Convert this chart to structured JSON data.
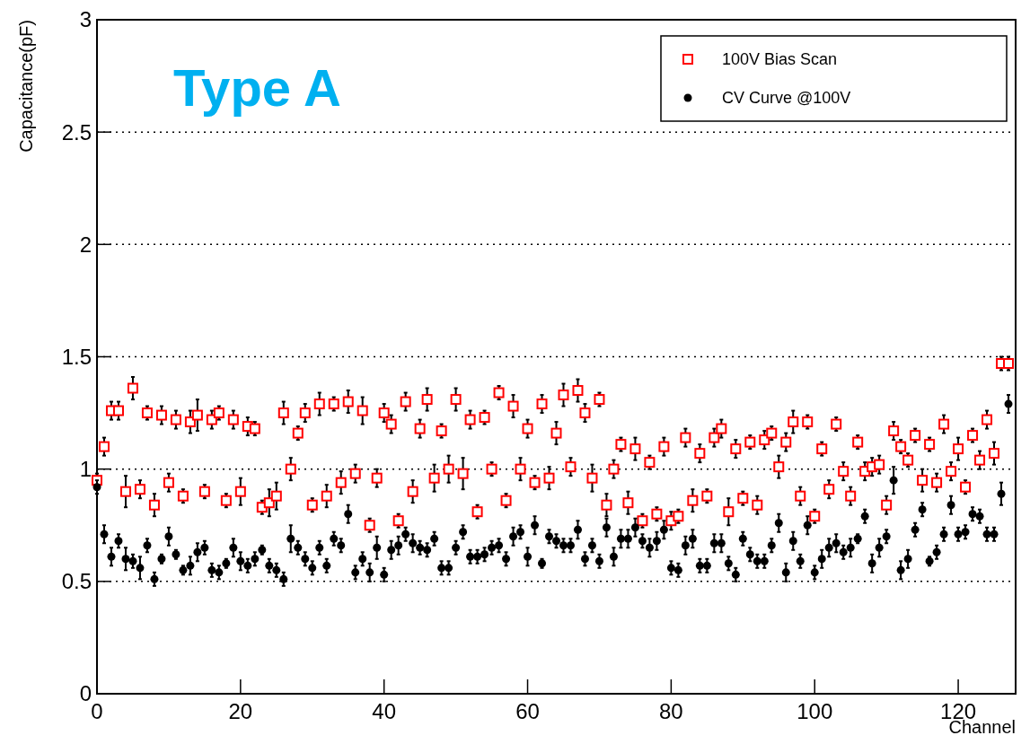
{
  "chart_data": {
    "type": "scatter",
    "xlabel": "Channel",
    "ylabel": "Capacitance(pF)",
    "annotations": [
      "Type A"
    ],
    "xlim": [
      0,
      128
    ],
    "xticks": [
      0,
      20,
      40,
      60,
      80,
      100,
      120
    ],
    "ylim": [
      0,
      3
    ],
    "yticks": [
      0,
      0.5,
      1,
      1.5,
      2,
      2.5,
      3
    ],
    "grid": "y",
    "legend": "top right",
    "x": [
      0,
      1,
      2,
      3,
      4,
      5,
      6,
      7,
      8,
      9,
      10,
      11,
      12,
      13,
      14,
      15,
      16,
      17,
      18,
      19,
      20,
      21,
      22,
      23,
      24,
      25,
      26,
      27,
      28,
      29,
      30,
      31,
      32,
      33,
      34,
      35,
      36,
      37,
      38,
      39,
      40,
      41,
      42,
      43,
      44,
      45,
      46,
      47,
      48,
      49,
      50,
      51,
      52,
      53,
      54,
      55,
      56,
      57,
      58,
      59,
      60,
      61,
      62,
      63,
      64,
      65,
      66,
      67,
      68,
      69,
      70,
      71,
      72,
      73,
      74,
      75,
      76,
      77,
      78,
      79,
      80,
      81,
      82,
      83,
      84,
      85,
      86,
      87,
      88,
      89,
      90,
      91,
      92,
      93,
      94,
      95,
      96,
      97,
      98,
      99,
      100,
      101,
      102,
      103,
      104,
      105,
      106,
      107,
      108,
      109,
      110,
      111,
      112,
      113,
      114,
      115,
      116,
      117,
      118,
      119,
      120,
      121,
      122,
      123,
      124,
      125,
      126,
      127
    ],
    "series": [
      {
        "name": "100V Bias Scan",
        "color": "#ff0000",
        "marker": "square",
        "values": [
          0.95,
          1.1,
          1.26,
          1.26,
          0.9,
          1.36,
          0.91,
          1.25,
          0.84,
          1.24,
          0.94,
          1.22,
          0.88,
          1.21,
          1.24,
          0.9,
          1.22,
          1.25,
          0.86,
          1.22,
          0.9,
          1.19,
          1.18,
          0.83,
          0.85,
          0.88,
          1.25,
          1.0,
          1.16,
          1.25,
          0.84,
          1.29,
          0.88,
          1.29,
          0.94,
          1.3,
          0.98,
          1.26,
          0.75,
          0.96,
          1.25,
          1.2,
          0.77,
          1.3,
          0.9,
          1.18,
          1.31,
          0.96,
          1.17,
          1.0,
          1.31,
          0.98,
          1.22,
          0.81,
          1.23,
          1.0,
          1.34,
          0.86,
          1.28,
          1.0,
          1.18,
          0.94,
          1.29,
          0.96,
          1.16,
          1.33,
          1.01,
          1.35,
          1.25,
          0.96,
          1.31,
          0.84,
          1.0,
          1.11,
          0.85,
          1.09,
          0.77,
          1.03,
          0.8,
          1.1,
          0.77,
          0.79,
          1.14,
          0.86,
          1.07,
          0.88,
          1.14,
          1.18,
          0.81,
          1.09,
          0.87,
          1.12,
          0.84,
          1.13,
          1.16,
          1.01,
          1.12,
          1.21,
          0.88,
          1.21,
          0.79,
          1.09,
          0.91,
          1.2,
          0.99,
          0.88,
          1.12,
          0.99,
          1.01,
          1.02,
          0.84,
          1.17,
          1.1,
          1.04,
          1.15,
          0.95,
          1.11,
          0.94,
          1.2,
          0.99,
          1.09,
          0.92,
          1.15,
          1.04,
          1.22,
          1.07,
          1.47,
          1.47
        ],
        "errors": [
          0.03,
          0.04,
          0.04,
          0.04,
          0.07,
          0.05,
          0.04,
          0.03,
          0.05,
          0.04,
          0.04,
          0.04,
          0.03,
          0.05,
          0.07,
          0.03,
          0.04,
          0.03,
          0.03,
          0.04,
          0.06,
          0.04,
          0.03,
          0.03,
          0.06,
          0.06,
          0.05,
          0.05,
          0.03,
          0.04,
          0.03,
          0.05,
          0.05,
          0.03,
          0.05,
          0.05,
          0.04,
          0.06,
          0.03,
          0.04,
          0.04,
          0.04,
          0.03,
          0.04,
          0.05,
          0.04,
          0.05,
          0.06,
          0.03,
          0.06,
          0.05,
          0.07,
          0.04,
          0.03,
          0.03,
          0.03,
          0.03,
          0.03,
          0.05,
          0.05,
          0.04,
          0.03,
          0.04,
          0.05,
          0.05,
          0.05,
          0.04,
          0.05,
          0.04,
          0.06,
          0.03,
          0.05,
          0.04,
          0.03,
          0.05,
          0.05,
          0.03,
          0.03,
          0.03,
          0.04,
          0.04,
          0.03,
          0.04,
          0.05,
          0.04,
          0.03,
          0.04,
          0.04,
          0.06,
          0.04,
          0.03,
          0.03,
          0.04,
          0.04,
          0.03,
          0.05,
          0.04,
          0.05,
          0.04,
          0.03,
          0.03,
          0.03,
          0.04,
          0.03,
          0.04,
          0.04,
          0.03,
          0.04,
          0.04,
          0.04,
          0.04,
          0.04,
          0.03,
          0.03,
          0.03,
          0.05,
          0.03,
          0.04,
          0.04,
          0.04,
          0.05,
          0.03,
          0.03,
          0.04,
          0.04,
          0.05,
          0.03,
          0.03
        ]
      },
      {
        "name": "CV Curve @100V",
        "color": "#000000",
        "marker": "circle",
        "values": [
          0.92,
          0.71,
          0.61,
          0.68,
          0.6,
          0.59,
          0.56,
          0.66,
          0.51,
          0.6,
          0.7,
          0.62,
          0.55,
          0.57,
          0.63,
          0.65,
          0.55,
          0.54,
          0.58,
          0.65,
          0.59,
          0.57,
          0.6,
          0.64,
          0.57,
          0.55,
          0.51,
          0.69,
          0.65,
          0.6,
          0.56,
          0.65,
          0.57,
          0.69,
          0.66,
          0.8,
          0.54,
          0.6,
          0.54,
          0.65,
          0.53,
          0.64,
          0.66,
          0.71,
          0.67,
          0.65,
          0.64,
          0.69,
          0.56,
          0.56,
          0.65,
          0.72,
          0.61,
          0.61,
          0.62,
          0.65,
          0.66,
          0.6,
          0.7,
          0.72,
          0.61,
          0.75,
          0.58,
          0.7,
          0.68,
          0.66,
          0.66,
          0.73,
          0.6,
          0.66,
          0.59,
          0.74,
          0.61,
          0.69,
          0.69,
          0.74,
          0.68,
          0.65,
          0.68,
          0.73,
          0.56,
          0.55,
          0.66,
          0.69,
          0.57,
          0.57,
          0.67,
          0.67,
          0.58,
          0.53,
          0.69,
          0.62,
          0.59,
          0.59,
          0.66,
          0.76,
          0.54,
          0.68,
          0.59,
          0.75,
          0.54,
          0.6,
          0.65,
          0.67,
          0.63,
          0.65,
          0.69,
          0.79,
          0.58,
          0.65,
          0.7,
          0.95,
          0.55,
          0.6,
          0.73,
          0.82,
          0.59,
          0.63,
          0.71,
          0.84,
          0.71,
          0.72,
          0.8,
          0.79,
          0.71,
          0.71,
          0.89,
          1.29
        ],
        "errors": [
          0.03,
          0.04,
          0.04,
          0.03,
          0.05,
          0.03,
          0.05,
          0.03,
          0.03,
          0.02,
          0.04,
          0.02,
          0.02,
          0.04,
          0.04,
          0.03,
          0.03,
          0.03,
          0.02,
          0.04,
          0.04,
          0.03,
          0.03,
          0.02,
          0.03,
          0.03,
          0.03,
          0.06,
          0.03,
          0.03,
          0.03,
          0.03,
          0.03,
          0.03,
          0.03,
          0.04,
          0.03,
          0.03,
          0.04,
          0.05,
          0.03,
          0.04,
          0.04,
          0.03,
          0.04,
          0.03,
          0.03,
          0.03,
          0.03,
          0.03,
          0.03,
          0.03,
          0.03,
          0.03,
          0.03,
          0.03,
          0.03,
          0.03,
          0.04,
          0.03,
          0.04,
          0.04,
          0.02,
          0.03,
          0.03,
          0.03,
          0.03,
          0.04,
          0.03,
          0.03,
          0.03,
          0.04,
          0.04,
          0.04,
          0.04,
          0.04,
          0.03,
          0.04,
          0.04,
          0.04,
          0.03,
          0.03,
          0.04,
          0.04,
          0.03,
          0.03,
          0.04,
          0.04,
          0.03,
          0.03,
          0.03,
          0.03,
          0.03,
          0.03,
          0.03,
          0.04,
          0.04,
          0.04,
          0.03,
          0.04,
          0.03,
          0.04,
          0.04,
          0.04,
          0.03,
          0.04,
          0.02,
          0.03,
          0.04,
          0.04,
          0.03,
          0.06,
          0.04,
          0.04,
          0.03,
          0.03,
          0.02,
          0.03,
          0.03,
          0.04,
          0.03,
          0.03,
          0.03,
          0.03,
          0.03,
          0.03,
          0.05,
          0.04
        ]
      }
    ]
  }
}
